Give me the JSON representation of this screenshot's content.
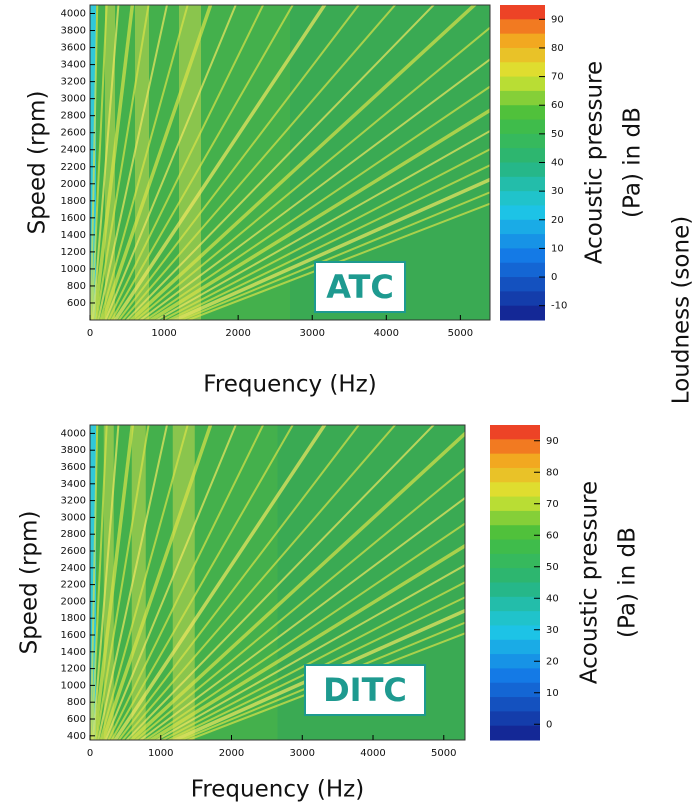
{
  "chart_data": [
    {
      "type": "spectrogram",
      "label": "ATC",
      "x_label": "Frequency (Hz)",
      "y_label": "Speed (rpm)",
      "xlim": [
        0,
        5400
      ],
      "xticks": [
        0,
        1000,
        2000,
        3000,
        4000,
        5000
      ],
      "ylim": [
        400,
        4100
      ],
      "yticks": [
        600,
        800,
        1000,
        1200,
        1400,
        1600,
        1800,
        2000,
        2200,
        2400,
        2600,
        2800,
        3000,
        3200,
        3400,
        3600,
        3800,
        4000
      ],
      "colorbar": {
        "label": [
          "Acoustic pressure",
          "(Pa) in dB"
        ],
        "lim": [
          -15,
          95
        ],
        "ticks": [
          -10,
          0,
          10,
          20,
          30,
          40,
          50,
          60,
          70,
          80,
          90
        ]
      }
    },
    {
      "type": "spectrogram",
      "label": "DITC",
      "x_label": "Frequency (Hz)",
      "y_label": "Speed (rpm)",
      "xlim": [
        0,
        5300
      ],
      "xticks": [
        0,
        1000,
        2000,
        3000,
        4000,
        5000
      ],
      "ylim": [
        350,
        4100
      ],
      "yticks": [
        400,
        600,
        800,
        1000,
        1200,
        1400,
        1600,
        1800,
        2000,
        2200,
        2400,
        2600,
        2800,
        3000,
        3200,
        3400,
        3600,
        3800,
        4000
      ],
      "colorbar": {
        "label": [
          "Acoustic pressure",
          "(Pa) in dB"
        ],
        "lim": [
          -5,
          95
        ],
        "ticks": [
          0,
          10,
          20,
          30,
          40,
          50,
          60,
          70,
          80,
          90
        ]
      }
    }
  ],
  "side_label": "Loudness (sone)"
}
